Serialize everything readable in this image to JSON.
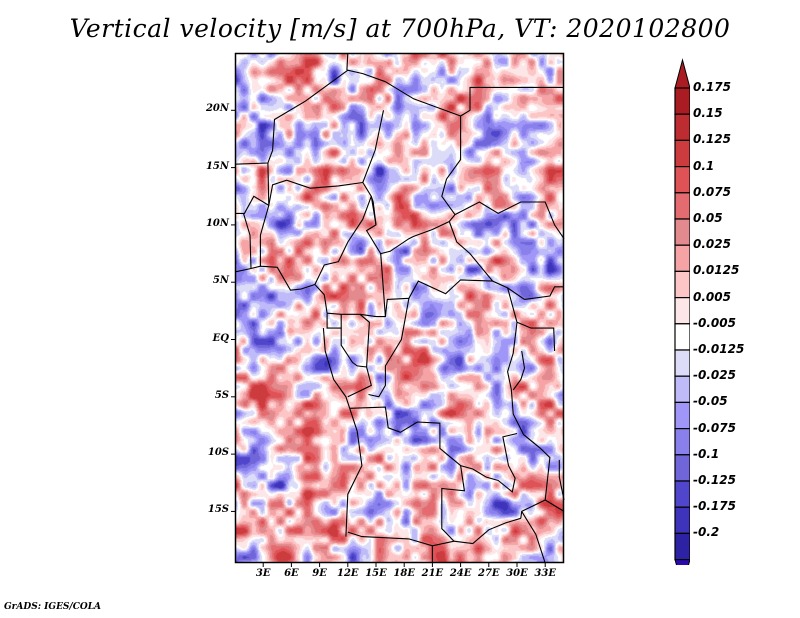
{
  "title": "Vertical velocity [m/s] at 700hPa, VT: 2020102800",
  "footer": "GrADS: IGES/COLA",
  "map": {
    "projection": "lat-lon",
    "lon_range": [
      0,
      35
    ],
    "lat_range": [
      -19.5,
      25
    ],
    "y_ticks": [
      {
        "lat": 20,
        "label": "20N"
      },
      {
        "lat": 15,
        "label": "15N"
      },
      {
        "lat": 10,
        "label": "10N"
      },
      {
        "lat": 5,
        "label": "5N"
      },
      {
        "lat": 0,
        "label": "EQ"
      },
      {
        "lat": -5,
        "label": "5S"
      },
      {
        "lat": -10,
        "label": "10S"
      },
      {
        "lat": -15,
        "label": "15S"
      }
    ],
    "x_ticks": [
      {
        "lon": 3,
        "label": "3E"
      },
      {
        "lon": 6,
        "label": "6E"
      },
      {
        "lon": 9,
        "label": "9E"
      },
      {
        "lon": 12,
        "label": "12E"
      },
      {
        "lon": 15,
        "label": "15E"
      },
      {
        "lon": 18,
        "label": "18E"
      },
      {
        "lon": 21,
        "label": "21E"
      },
      {
        "lon": 24,
        "label": "24E"
      },
      {
        "lon": 27,
        "label": "27E"
      },
      {
        "lon": 30,
        "label": "30E"
      },
      {
        "lon": 33,
        "label": "33E"
      }
    ],
    "borders": [
      [
        [
          0,
          15.3
        ],
        [
          3.5,
          15.4
        ],
        [
          4,
          16.5
        ],
        [
          4.2,
          19.2
        ],
        [
          7.5,
          20.8
        ],
        [
          12,
          23.5
        ],
        [
          13.6,
          23.2
        ],
        [
          16,
          22.5
        ]
      ],
      [
        [
          11.9,
          23.5
        ],
        [
          12,
          25
        ]
      ],
      [
        [
          16,
          22.5
        ],
        [
          19,
          21
        ],
        [
          24,
          19.5
        ],
        [
          24,
          15.7
        ],
        [
          22.5,
          14
        ],
        [
          22,
          12.5
        ],
        [
          23.4,
          10.9
        ],
        [
          22.8,
          10.3
        ]
      ],
      [
        [
          24,
          19.5
        ],
        [
          25,
          20
        ],
        [
          25,
          22
        ],
        [
          35,
          22
        ]
      ],
      [
        [
          0,
          11
        ],
        [
          1,
          11
        ],
        [
          2,
          12.5
        ],
        [
          3.6,
          11.7
        ],
        [
          4,
          13.5
        ],
        [
          5.5,
          13.9
        ],
        [
          8,
          13.2
        ],
        [
          11,
          13.4
        ],
        [
          13.6,
          13.7
        ]
      ],
      [
        [
          3.5,
          15.4
        ],
        [
          3.6,
          11.7
        ]
      ],
      [
        [
          15.8,
          20
        ],
        [
          14.9,
          16.5
        ],
        [
          13.6,
          13.7
        ],
        [
          14.5,
          12.5
        ],
        [
          14.7,
          12
        ],
        [
          15,
          10
        ],
        [
          14,
          9.5
        ],
        [
          15.5,
          7.5
        ],
        [
          16.5,
          7.7
        ],
        [
          18.5,
          8.8
        ],
        [
          19,
          9
        ],
        [
          21,
          9.6
        ],
        [
          22.8,
          10.3
        ]
      ],
      [
        [
          2.7,
          6.4
        ],
        [
          2.7,
          9.1
        ],
        [
          3.6,
          11.7
        ]
      ],
      [
        [
          1.7,
          6.2
        ],
        [
          1.6,
          9.1
        ],
        [
          0.9,
          11
        ]
      ],
      [
        [
          0,
          5.9
        ],
        [
          1.7,
          6.2
        ],
        [
          2.7,
          6.4
        ],
        [
          4.5,
          6.3
        ],
        [
          5.9,
          4.3
        ],
        [
          7,
          4.4
        ],
        [
          8.5,
          4.8
        ],
        [
          9.5,
          3.9
        ],
        [
          9.8,
          2.3
        ]
      ],
      [
        [
          8.5,
          4.8
        ],
        [
          9.5,
          6.5
        ],
        [
          11,
          6.8
        ],
        [
          12,
          8.5
        ],
        [
          13.6,
          10.5
        ],
        [
          14.5,
          12.5
        ]
      ],
      [
        [
          14.5,
          12.5
        ],
        [
          15,
          10
        ]
      ],
      [
        [
          9.8,
          2.3
        ],
        [
          11.3,
          2.2
        ],
        [
          13.3,
          2.2
        ],
        [
          15,
          2
        ],
        [
          16,
          2
        ],
        [
          16.2,
          3.5
        ],
        [
          18.5,
          3.6
        ],
        [
          19.5,
          5.1
        ],
        [
          22.4,
          4
        ],
        [
          24,
          5.2
        ],
        [
          27.4,
          5.1
        ],
        [
          29,
          4.5
        ],
        [
          30.8,
          3.5
        ]
      ],
      [
        [
          15.5,
          7.5
        ],
        [
          16,
          2
        ]
      ],
      [
        [
          22.8,
          10.3
        ],
        [
          23.6,
          8.5
        ],
        [
          25,
          7.5
        ],
        [
          27.4,
          5.1
        ]
      ],
      [
        [
          23.4,
          10.9
        ],
        [
          26,
          12
        ],
        [
          28,
          11
        ],
        [
          30.4,
          12
        ],
        [
          33,
          12
        ],
        [
          34,
          10
        ],
        [
          35,
          8.8
        ]
      ],
      [
        [
          30.8,
          3.5
        ],
        [
          33.5,
          3.8
        ],
        [
          34,
          4.6
        ],
        [
          35,
          4.6
        ]
      ],
      [
        [
          9.8,
          2.3
        ],
        [
          9.8,
          1
        ],
        [
          11.3,
          1
        ],
        [
          11.3,
          2.2
        ]
      ],
      [
        [
          9.4,
          1
        ],
        [
          9.6,
          -1
        ],
        [
          10.5,
          -3.5
        ],
        [
          11.8,
          -5
        ],
        [
          12.2,
          -6
        ],
        [
          13,
          -8
        ],
        [
          13.5,
          -11
        ],
        [
          12,
          -13.5
        ],
        [
          11.8,
          -17.2
        ]
      ],
      [
        [
          11.3,
          1
        ],
        [
          11.3,
          -0.5
        ],
        [
          12.5,
          -2
        ],
        [
          13,
          -2.3
        ],
        [
          14,
          -2.4
        ],
        [
          14.5,
          -4
        ],
        [
          13,
          -4.6
        ],
        [
          12,
          -5
        ]
      ],
      [
        [
          13.3,
          2.2
        ],
        [
          14.3,
          1.5
        ],
        [
          14,
          -2.4
        ]
      ],
      [
        [
          18.5,
          3.6
        ],
        [
          17.7,
          0
        ],
        [
          16,
          -2.3
        ],
        [
          16,
          -4
        ],
        [
          15.3,
          -5
        ],
        [
          14.2,
          -4.8
        ]
      ],
      [
        [
          12.2,
          -6
        ],
        [
          16,
          -5.9
        ],
        [
          16.3,
          -7.7
        ],
        [
          17.6,
          -8.1
        ],
        [
          19.4,
          -7.2
        ],
        [
          21.8,
          -7.3
        ],
        [
          21.8,
          -9.5
        ],
        [
          24,
          -11
        ],
        [
          24.4,
          -13.2
        ],
        [
          22,
          -13
        ],
        [
          22,
          -16.5
        ],
        [
          23.3,
          -17.6
        ]
      ],
      [
        [
          12,
          -16.8
        ],
        [
          13.5,
          -17.2
        ],
        [
          18.5,
          -17.4
        ],
        [
          21,
          -18
        ],
        [
          23.3,
          -17.6
        ],
        [
          25.3,
          -17.8
        ],
        [
          27,
          -16.6
        ],
        [
          28.8,
          -16
        ],
        [
          30.4,
          -15.6
        ]
      ],
      [
        [
          21,
          -18
        ],
        [
          21,
          -19.5
        ]
      ],
      [
        [
          24,
          -11
        ],
        [
          25.3,
          -11.3
        ],
        [
          26.7,
          -12
        ],
        [
          28,
          -12.3
        ],
        [
          29.5,
          -13.3
        ],
        [
          29.8,
          -12.1
        ],
        [
          29.1,
          -11
        ],
        [
          28.5,
          -8.5
        ],
        [
          30,
          -8.2
        ]
      ],
      [
        [
          29,
          4.5
        ],
        [
          30,
          1.5
        ],
        [
          29.6,
          -1.2
        ],
        [
          29,
          -2.8
        ],
        [
          29.4,
          -4.4
        ],
        [
          29.6,
          -6.5
        ],
        [
          30.7,
          -8.3
        ],
        [
          32.5,
          -9.5
        ],
        [
          33.5,
          -10.3
        ],
        [
          33,
          -14
        ],
        [
          30.5,
          -15
        ],
        [
          30.4,
          -15.6
        ]
      ],
      [
        [
          30,
          1.5
        ],
        [
          31.5,
          1
        ],
        [
          33.9,
          1
        ],
        [
          34,
          -1
        ]
      ],
      [
        [
          30.5,
          -15
        ],
        [
          32,
          -17
        ],
        [
          33,
          -19.5
        ]
      ],
      [
        [
          33,
          -14
        ],
        [
          35,
          -15
        ]
      ],
      [
        [
          34.5,
          -10.5
        ],
        [
          34.5,
          -12
        ],
        [
          35,
          -14
        ]
      ],
      [
        [
          30.5,
          -1
        ],
        [
          30.8,
          -2.5
        ],
        [
          30.4,
          -3.5
        ],
        [
          29.6,
          -4.4
        ]
      ]
    ]
  },
  "colorbar": {
    "levels": [
      "0.175",
      "0.15",
      "0.125",
      "0.1",
      "0.075",
      "0.05",
      "0.025",
      "0.0125",
      "0.005",
      "-0.005",
      "-0.0125",
      "-0.025",
      "-0.05",
      "-0.075",
      "-0.1",
      "-0.125",
      "-0.175",
      "-0.2"
    ],
    "colors": [
      "#a91d22",
      "#bd2c30",
      "#cc3c3f",
      "#df5256",
      "#e46c70",
      "#e28a8d",
      "#f6a3a5",
      "#fcc6c7",
      "#fde6e7",
      "#ffffff",
      "#dcdcf8",
      "#bfbaf8",
      "#a096f8",
      "#8980ec",
      "#7066da",
      "#5046cc",
      "#3e34bb",
      "#2d22a4",
      "#250ea0"
    ],
    "top_arrow_color": "#a91d22",
    "bottom_arrow_color": "#2a0aa8"
  }
}
